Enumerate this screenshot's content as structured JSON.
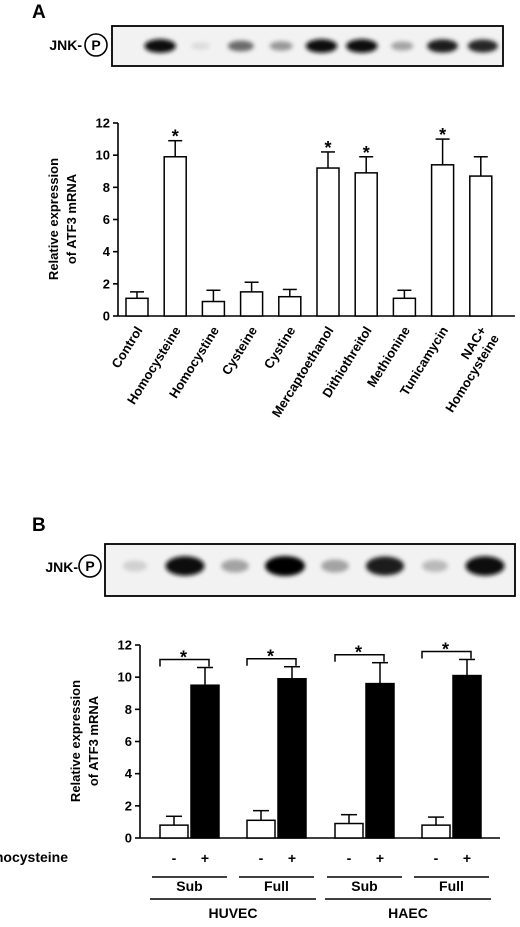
{
  "chart_data": [
    {
      "panel": "A",
      "type": "bar",
      "blot_label": "JNK-",
      "blot_symbol": "P",
      "blot_band_intensity": [
        0.95,
        0.05,
        0.55,
        0.35,
        0.95,
        0.95,
        0.3,
        0.9,
        0.85
      ],
      "categories": [
        "Control",
        "Homocysteine",
        "Homocystine",
        "Cysteine",
        "Cystine",
        "Mercaptoethanol",
        "Dithiothreitol",
        "Methionine",
        "Tunicamycin",
        "NAC+\nHomocysteine"
      ],
      "series": [
        {
          "values": [
            1.1,
            9.9,
            0.9,
            1.5,
            1.2,
            9.2,
            8.9,
            1.1,
            9.4,
            8.7
          ],
          "errors": [
            0.4,
            1.0,
            0.7,
            0.6,
            0.45,
            1.0,
            1.0,
            0.5,
            1.6,
            1.2
          ]
        }
      ],
      "significant": [
        false,
        true,
        false,
        false,
        false,
        true,
        true,
        false,
        true,
        false
      ],
      "significance_marker": "*",
      "ylabel_lines": [
        "Relative expression",
        "of ATF3  mRNA"
      ],
      "ylim": [
        0,
        12
      ],
      "yticks": [
        "0",
        "2",
        "4",
        "6",
        "8",
        "10",
        "12"
      ],
      "grid": false
    },
    {
      "panel": "B",
      "type": "bar",
      "blot_label": "JNK-",
      "blot_symbol": "P",
      "blot_band_intensity": [
        0.1,
        0.95,
        0.3,
        1.0,
        0.3,
        0.9,
        0.2,
        0.95
      ],
      "categories": [
        "-",
        "+",
        "-",
        "+",
        "-",
        "+",
        "-",
        "+"
      ],
      "series": [
        {
          "values": [
            0.8,
            9.5,
            1.1,
            9.9,
            0.9,
            9.6,
            0.8,
            10.1
          ],
          "errors": [
            0.55,
            1.1,
            0.6,
            0.75,
            0.55,
            1.3,
            0.5,
            1.0
          ]
        }
      ],
      "bar_fills": [
        "#ffffff",
        "#000000",
        "#ffffff",
        "#000000",
        "#ffffff",
        "#000000",
        "#ffffff",
        "#000000"
      ],
      "comparison_brackets": [
        [
          0,
          1
        ],
        [
          2,
          3
        ],
        [
          4,
          5
        ],
        [
          6,
          7
        ]
      ],
      "significance_marker": "*",
      "ylabel_lines": [
        "Relative expression",
        "of ATF3  mRNA"
      ],
      "ylim": [
        0,
        12
      ],
      "yticks": [
        "0",
        "2",
        "4",
        "6",
        "8",
        "10",
        "12"
      ],
      "treatment_label": "Homocysteine",
      "medium_groups": [
        "Sub",
        "Full",
        "Sub",
        "Full"
      ],
      "cell_groups": [
        "HUVEC",
        "HAEC"
      ],
      "grid": false
    }
  ]
}
